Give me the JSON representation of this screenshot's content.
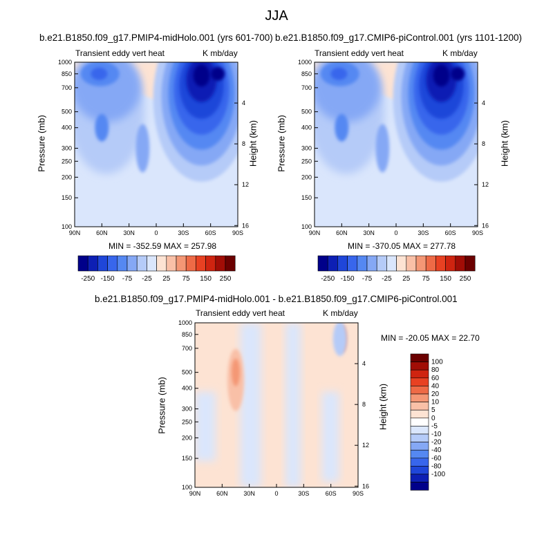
{
  "page": {
    "title": "JJA"
  },
  "colors": {
    "cbar_panels": [
      "#00008a",
      "#0d1fb4",
      "#1f46d9",
      "#3866ec",
      "#5588f2",
      "#85a8f5",
      "#b5cbf8",
      "#dae6fc",
      "#fde3d3",
      "#f9c0a7",
      "#f49775",
      "#ee6a46",
      "#e84122",
      "#cf2410",
      "#a10d06",
      "#6b0000"
    ],
    "cbar_diff": [
      "#00008a",
      "#0d1fb4",
      "#1f46d9",
      "#3866ec",
      "#5588f2",
      "#85a8f5",
      "#b5cbf8",
      "#dae6fc",
      "#ffffff",
      "#fde3d3",
      "#f9c0a7",
      "#f49775",
      "#ee6a46",
      "#e84122",
      "#cf2410",
      "#a10d06",
      "#6b0000"
    ]
  },
  "chart_data": [
    {
      "type": "heatmap",
      "title": "b.e21.B1850.f09_g17.PMIP4-midHolo.001 (yrs 601-700)",
      "left_label": "Transient eddy vert heat",
      "right_label": "K mb/day",
      "xlabel": "",
      "ylabel": "Pressure (mb)",
      "ylabel_right": "Height (km)",
      "xticks": [
        "90N",
        "60N",
        "30N",
        "0",
        "30S",
        "60S",
        "90S"
      ],
      "xtick_values": [
        90,
        60,
        30,
        0,
        -30,
        -60,
        -90
      ],
      "yticks": [
        100,
        150,
        200,
        250,
        300,
        400,
        500,
        700,
        850,
        1000
      ],
      "yticks_right": [
        16,
        12,
        8,
        4
      ],
      "ylim": [
        1000,
        100
      ],
      "y_scale": "log",
      "stats": "MIN = -352.59  MAX = 257.98",
      "min": -352.59,
      "max": 257.98,
      "colorbar_labels": [
        "-250",
        "-150",
        "-75",
        "-25",
        "25",
        "75",
        "150",
        "250"
      ],
      "features": [
        {
          "lat": -52,
          "p": 800,
          "value": -350
        },
        {
          "lat": -45,
          "p": 550,
          "value": -200
        },
        {
          "lat": 65,
          "p": 850,
          "value": -150
        },
        {
          "lat": 60,
          "p": 400,
          "value": -75
        },
        {
          "lat": 15,
          "p": 300,
          "value": -50
        },
        {
          "lat": 25,
          "p": 120,
          "value": 10
        }
      ]
    },
    {
      "type": "heatmap",
      "title": "b.e21.B1850.f09_g17.CMIP6-piControl.001 (yrs 1101-1200)",
      "left_label": "Transient eddy vert heat",
      "right_label": "K mb/day",
      "xlabel": "",
      "ylabel": "Pressure (mb)",
      "ylabel_right": "Height (km)",
      "xticks": [
        "90N",
        "60N",
        "30N",
        "0",
        "30S",
        "60S",
        "90S"
      ],
      "xtick_values": [
        90,
        60,
        30,
        0,
        -30,
        -60,
        -90
      ],
      "yticks": [
        100,
        150,
        200,
        250,
        300,
        400,
        500,
        700,
        850,
        1000
      ],
      "yticks_right": [
        16,
        12,
        8,
        4
      ],
      "ylim": [
        1000,
        100
      ],
      "y_scale": "log",
      "stats": "MIN = -370.05  MAX = 277.78",
      "min": -370.05,
      "max": 277.78,
      "colorbar_labels": [
        "-250",
        "-150",
        "-75",
        "-25",
        "25",
        "75",
        "150",
        "250"
      ],
      "features": [
        {
          "lat": -52,
          "p": 800,
          "value": -365
        },
        {
          "lat": -45,
          "p": 550,
          "value": -210
        },
        {
          "lat": 65,
          "p": 850,
          "value": -155
        },
        {
          "lat": 60,
          "p": 400,
          "value": -80
        },
        {
          "lat": 15,
          "p": 300,
          "value": -55
        },
        {
          "lat": 25,
          "p": 120,
          "value": 10
        }
      ]
    },
    {
      "type": "heatmap",
      "title": "b.e21.B1850.f09_g17.PMIP4-midHolo.001 - b.e21.B1850.f09_g17.CMIP6-piControl.001",
      "left_label": "Transient eddy vert heat",
      "right_label": "K mb/day",
      "xlabel": "",
      "ylabel": "Pressure (mb)",
      "ylabel_right": "Height (km)",
      "xticks": [
        "90N",
        "60N",
        "30N",
        "0",
        "30S",
        "60S",
        "90S"
      ],
      "xtick_values": [
        90,
        60,
        30,
        0,
        -30,
        -60,
        -90
      ],
      "yticks": [
        100,
        150,
        200,
        250,
        300,
        400,
        500,
        700,
        850,
        1000
      ],
      "yticks_right": [
        16,
        12,
        8,
        4
      ],
      "ylim": [
        1000,
        100
      ],
      "y_scale": "log",
      "stats": "MIN = -20.05  MAX =  22.70",
      "min": -20.05,
      "max": 22.7,
      "colorbar_labels": [
        "100",
        "80",
        "60",
        "40",
        "20",
        "10",
        "5",
        "0",
        "-5",
        "-10",
        "-20",
        "-40",
        "-60",
        "-80",
        "-100"
      ],
      "features": [
        {
          "lat": 45,
          "p": 450,
          "value": 15
        },
        {
          "lat": -73,
          "p": 800,
          "value": 20
        },
        {
          "lat": 20,
          "p": 300,
          "value": -5
        },
        {
          "lat": -30,
          "p": 700,
          "value": -5
        }
      ]
    }
  ]
}
